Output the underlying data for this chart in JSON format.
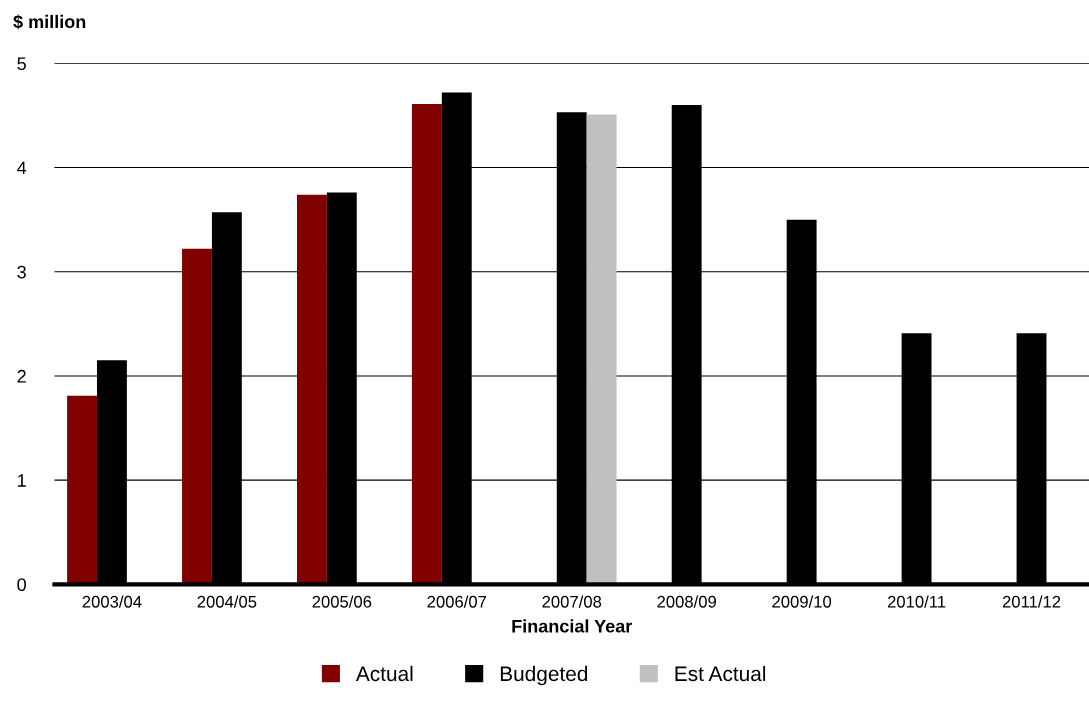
{
  "chart_data": {
    "type": "bar",
    "ylabel": "$ million",
    "xlabel": "Financial Year",
    "categories": [
      "2003/04",
      "2004/05",
      "2005/06",
      "2006/07",
      "2007/08",
      "2008/09",
      "2009/10",
      "2010/11",
      "2011/12"
    ],
    "series": [
      {
        "name": "Actual",
        "color": "#800000",
        "values": [
          1.81,
          3.22,
          3.74,
          4.61,
          null,
          null,
          null,
          null,
          null
        ]
      },
      {
        "name": "Budgeted",
        "color": "#000000",
        "values": [
          2.15,
          3.57,
          3.76,
          4.72,
          4.53,
          4.6,
          3.5,
          2.41,
          2.41
        ]
      },
      {
        "name": "Est Actual",
        "color": "#c0c0c0",
        "values": [
          null,
          null,
          null,
          null,
          4.51,
          null,
          null,
          null,
          null
        ]
      }
    ],
    "ylim": [
      0,
      5
    ],
    "yticks": [
      0,
      1,
      2,
      3,
      4,
      5
    ],
    "grid": "y",
    "legend": "bottom"
  }
}
